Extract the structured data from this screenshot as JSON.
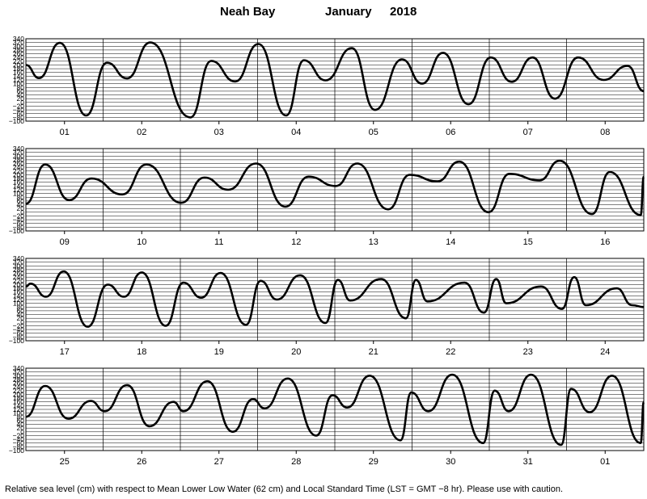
{
  "header": {
    "station": "Neah Bay",
    "month": "January",
    "year": "2018"
  },
  "footnote": "Relative sea level (cm) with respect to Mean Lower Low Water (62 cm) and Local Standard Time (LST = GMT −8 hr). Please use with caution.",
  "chart_data": {
    "type": "line",
    "title": "Neah Bay     January   2018",
    "ylabel": "Relative sea level (cm)",
    "ylim": [
      -100,
      340
    ],
    "y_ticks": [
      340,
      320,
      300,
      280,
      260,
      240,
      220,
      200,
      180,
      160,
      140,
      120,
      100,
      80,
      60,
      40,
      20,
      0,
      -20,
      -40,
      -60,
      -80,
      -100
    ],
    "y_tick_labels": [
      "340",
      "320",
      "300",
      "280",
      "260",
      "240",
      "220",
      "200",
      "180",
      "160",
      "140",
      "120",
      "100",
      "80",
      "60",
      "40",
      "20",
      "0",
      "−20",
      "−40",
      "−60",
      "−80",
      "−100"
    ],
    "grid": true,
    "panels": [
      {
        "day_labels": [
          "01",
          "02",
          "03",
          "04",
          "05",
          "06",
          "07",
          "08"
        ],
        "x": [
          0.0,
          0.17,
          0.44,
          0.78,
          1.05,
          1.31,
          1.61,
          2.13,
          2.4,
          2.71,
          3.01,
          3.37,
          3.6,
          3.88,
          4.22,
          4.52,
          4.87,
          5.13,
          5.4,
          5.73,
          6.02,
          6.29,
          6.56,
          6.85,
          7.15,
          7.48,
          7.79,
          8.0
        ],
        "y": [
          200,
          130,
          318,
          -70,
          212,
          128,
          320,
          -80,
          222,
          112,
          312,
          -70,
          225,
          118,
          290,
          -40,
          230,
          100,
          265,
          -10,
          240,
          110,
          240,
          20,
          240,
          120,
          195,
          60
        ]
      },
      {
        "day_labels": [
          "09",
          "10",
          "11",
          "12",
          "13",
          "14",
          "15",
          "16"
        ],
        "x": [
          0.0,
          0.25,
          0.56,
          0.85,
          1.25,
          1.56,
          2.01,
          2.31,
          2.62,
          2.98,
          3.36,
          3.66,
          4.01,
          4.29,
          4.69,
          4.97,
          5.33,
          5.61,
          5.99,
          6.26,
          6.65,
          6.91,
          7.33,
          7.56,
          7.96,
          8.0
        ],
        "y": [
          45,
          255,
          65,
          180,
          95,
          255,
          50,
          185,
          120,
          260,
          30,
          190,
          140,
          260,
          15,
          200,
          165,
          270,
          0,
          205,
          170,
          275,
          -10,
          215,
          -15,
          190
        ]
      },
      {
        "day_labels": [
          "17",
          "18",
          "19",
          "20",
          "21",
          "22",
          "23",
          "24"
        ],
        "x": [
          0.0,
          0.06,
          0.26,
          0.49,
          0.8,
          1.06,
          1.27,
          1.5,
          1.81,
          2.04,
          2.27,
          2.52,
          2.85,
          3.04,
          3.25,
          3.55,
          3.88,
          4.04,
          4.2,
          4.6,
          4.92,
          5.05,
          5.2,
          5.68,
          5.93,
          6.09,
          6.22,
          6.67,
          6.94,
          7.1,
          7.25,
          7.65,
          7.85,
          8.0
        ],
        "y": [
          190,
          205,
          135,
          270,
          -25,
          200,
          135,
          265,
          -20,
          210,
          130,
          262,
          -15,
          220,
          120,
          250,
          -5,
          225,
          115,
          230,
          20,
          225,
          110,
          210,
          50,
          230,
          100,
          190,
          70,
          240,
          90,
          180,
          90,
          80
        ]
      },
      {
        "day_labels": [
          "25",
          "26",
          "27",
          "28",
          "29",
          "30",
          "31",
          "01"
        ],
        "x": [
          0.0,
          0.25,
          0.55,
          0.84,
          1.02,
          1.31,
          1.6,
          1.91,
          2.04,
          2.35,
          2.68,
          2.94,
          3.09,
          3.39,
          3.76,
          3.97,
          4.16,
          4.45,
          4.85,
          4.99,
          5.21,
          5.52,
          5.92,
          6.07,
          6.25,
          6.54,
          6.93,
          7.06,
          7.3,
          7.59,
          7.96,
          8.0
        ],
        "y": [
          80,
          245,
          70,
          165,
          110,
          250,
          30,
          160,
          110,
          270,
          0,
          175,
          125,
          285,
          -20,
          195,
          130,
          300,
          -45,
          210,
          110,
          305,
          -60,
          220,
          110,
          305,
          -70,
          230,
          105,
          300,
          -60,
          160
        ]
      }
    ]
  }
}
